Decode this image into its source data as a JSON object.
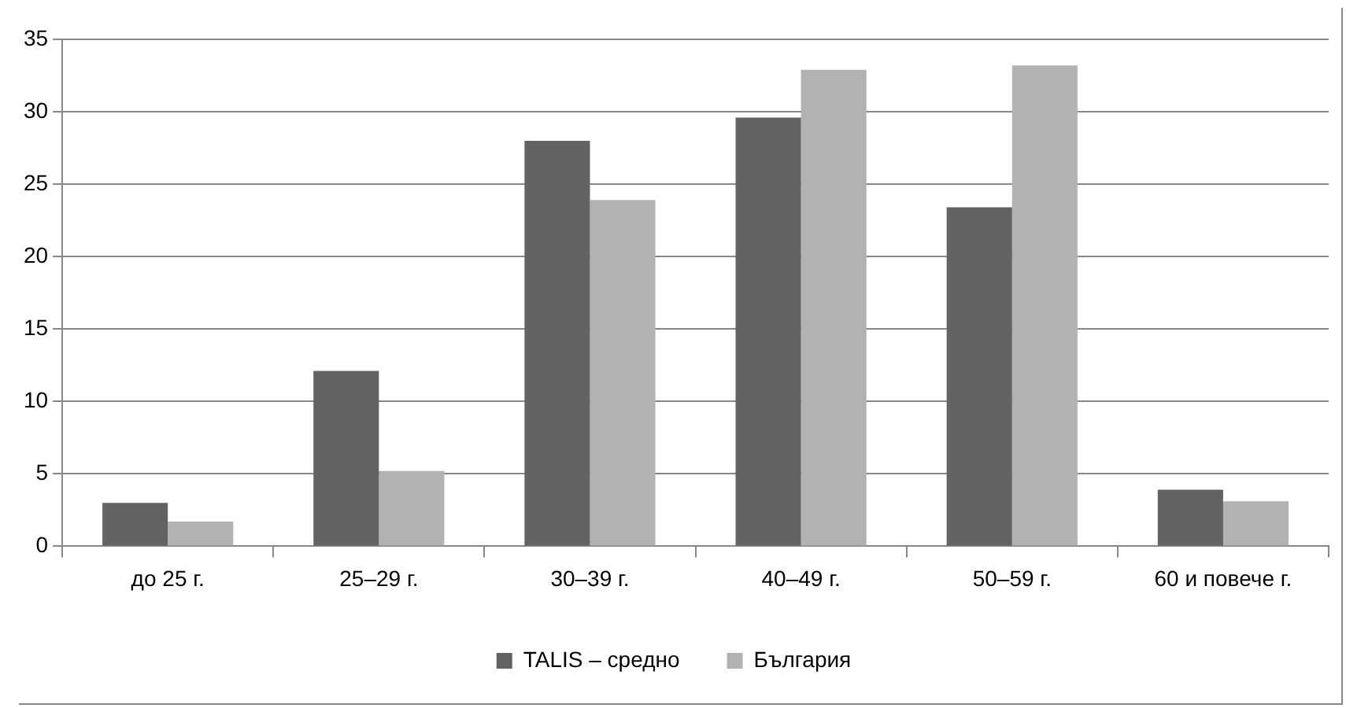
{
  "chart_data": {
    "type": "bar",
    "categories": [
      "до 25 г.",
      "25–29 г.",
      "30–39 г.",
      "40–49 г.",
      "50–59 г.",
      "60 и повече г."
    ],
    "series": [
      {
        "name": "TALIS – средно",
        "color": "#636363",
        "values": [
          3.0,
          12.1,
          28.0,
          29.6,
          23.4,
          3.9
        ]
      },
      {
        "name": "България",
        "color": "#b2b2b2",
        "values": [
          1.7,
          5.2,
          23.9,
          32.9,
          33.2,
          3.1
        ]
      }
    ],
    "ylim": [
      0,
      35
    ],
    "yticks": [
      0,
      5,
      10,
      15,
      20,
      25,
      30,
      35
    ],
    "grid": "y",
    "legend": "bottom"
  }
}
